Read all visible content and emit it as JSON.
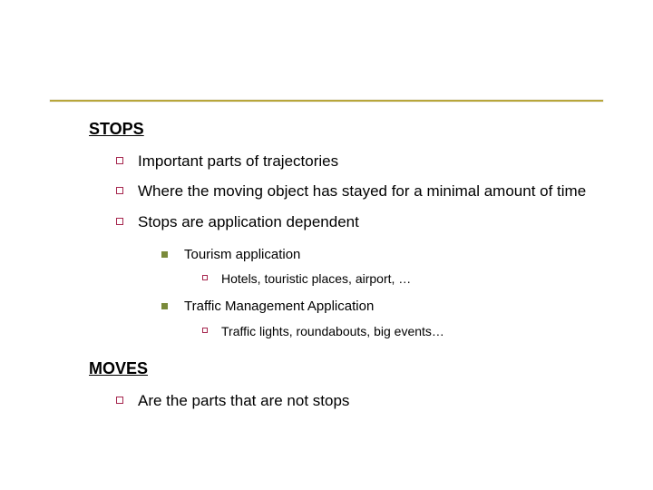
{
  "colors": {
    "rule": "#b8a63a",
    "square_bullet_border": "#a6264e",
    "solid_bullet": "#7a8a3a",
    "text": "#000000",
    "background": "#ffffff"
  },
  "sections": {
    "stops": {
      "title": "STOPS",
      "items": [
        "Important parts of trajectories",
        "Where the moving object has stayed for a minimal amount of time",
        "Stops are application dependent"
      ],
      "applications": [
        {
          "label": "Tourism application",
          "detail": "Hotels, touristic places, airport, …"
        },
        {
          "label": "Traffic Management Application",
          "detail": "Traffic lights, roundabouts, big events…"
        }
      ]
    },
    "moves": {
      "title": "MOVES",
      "items": [
        "Are the parts that are not stops"
      ]
    }
  }
}
